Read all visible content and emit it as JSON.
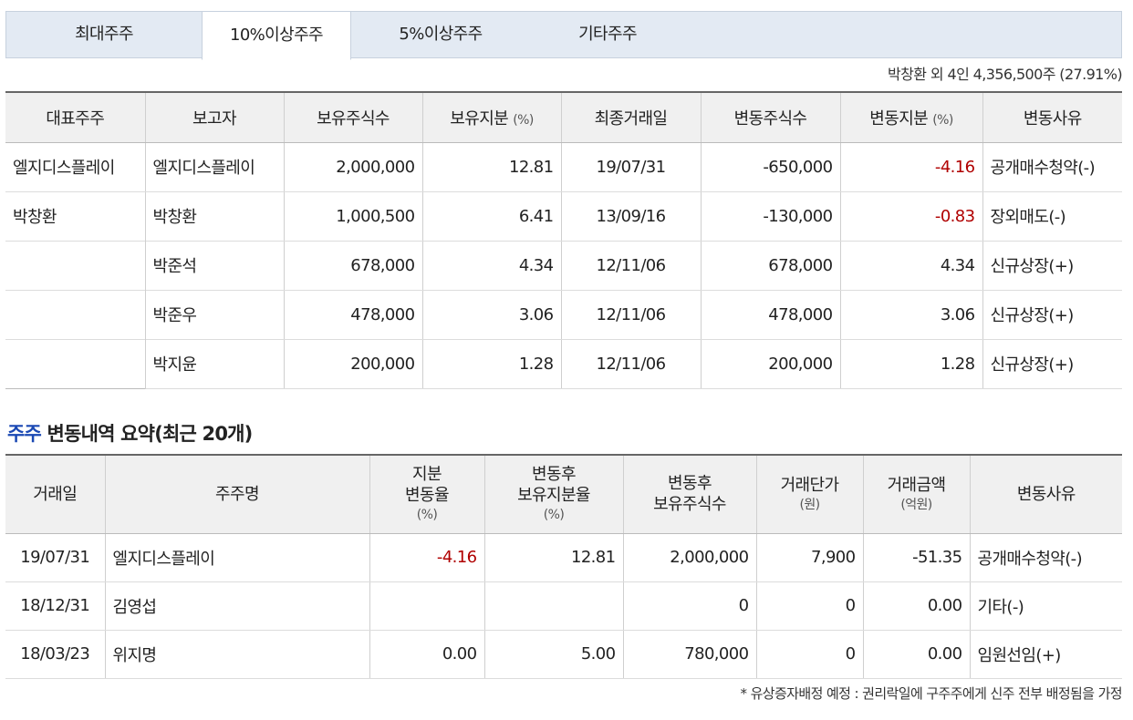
{
  "tabs": [
    {
      "label": "최대주주",
      "active": false
    },
    {
      "label": "10%이상주주",
      "active": true
    },
    {
      "label": "5%이상주주",
      "active": false
    },
    {
      "label": "기타주주",
      "active": false
    }
  ],
  "summary": "박창환 외 4인 4,356,500주 (27.91%)",
  "holders_table": {
    "headers": [
      "대표주주",
      "보고자",
      "보유주식수",
      "보유지분",
      "(%)",
      "최종거래일",
      "변동주식수",
      "변동지분",
      "(%)",
      "변동사유"
    ],
    "rows": [
      {
        "rep": "엘지디스플레이",
        "reporter": "엘지디스플레이",
        "shares": "2,000,000",
        "stake": "12.81",
        "last_date": "19/07/31",
        "change_shares": "-650,000",
        "change_stake": "-4.16",
        "reason": "공개매수청약(-)"
      },
      {
        "rep": "박창환",
        "reporter": "박창환",
        "shares": "1,000,500",
        "stake": "6.41",
        "last_date": "13/09/16",
        "change_shares": "-130,000",
        "change_stake": "-0.83",
        "reason": "장외매도(-)"
      },
      {
        "rep": "",
        "reporter": "박준석",
        "shares": "678,000",
        "stake": "4.34",
        "last_date": "12/11/06",
        "change_shares": "678,000",
        "change_stake": "4.34",
        "reason": "신규상장(+)"
      },
      {
        "rep": "",
        "reporter": "박준우",
        "shares": "478,000",
        "stake": "3.06",
        "last_date": "12/11/06",
        "change_shares": "478,000",
        "change_stake": "3.06",
        "reason": "신규상장(+)"
      },
      {
        "rep": "",
        "reporter": "박지윤",
        "shares": "200,000",
        "stake": "1.28",
        "last_date": "12/11/06",
        "change_shares": "200,000",
        "change_stake": "1.28",
        "reason": "신규상장(+)"
      }
    ]
  },
  "section": {
    "title_highlight": "주주",
    "title_rest": " 변동내역 요약(최근 20개)"
  },
  "changes_table": {
    "headers": {
      "date": "거래일",
      "name": "주주명",
      "rate_1": "지분",
      "rate_2": "변동율",
      "rate_unit": "(%)",
      "after_rate_1": "변동후",
      "after_rate_2": "보유지분율",
      "after_rate_unit": "(%)",
      "after_shares_1": "변동후",
      "after_shares_2": "보유주식수",
      "price_1": "거래단가",
      "price_unit": "(원)",
      "amount_1": "거래금액",
      "amount_unit": "(억원)",
      "reason": "변동사유"
    },
    "rows": [
      {
        "date": "19/07/31",
        "name": "엘지디스플레이",
        "rate": "-4.16",
        "after_rate": "12.81",
        "after_shares": "2,000,000",
        "price": "7,900",
        "amount": "-51.35",
        "reason": "공개매수청약(-)"
      },
      {
        "date": "18/12/31",
        "name": "김영섭",
        "rate": "",
        "after_rate": "",
        "after_shares": "0",
        "price": "0",
        "amount": "0.00",
        "reason": "기타(-)"
      },
      {
        "date": "18/03/23",
        "name": "위지명",
        "rate": "0.00",
        "after_rate": "5.00",
        "after_shares": "780,000",
        "price": "0",
        "amount": "0.00",
        "reason": "임원선임(+)"
      }
    ]
  },
  "footnote": "* 유상증자배정 예정 : 권리락일에 구주주에게 신주 전부 배정됨을 가정",
  "colors": {
    "negative": "#b00000",
    "section_highlight": "#1a48b3",
    "tab_bg": "#e3eaf3"
  }
}
